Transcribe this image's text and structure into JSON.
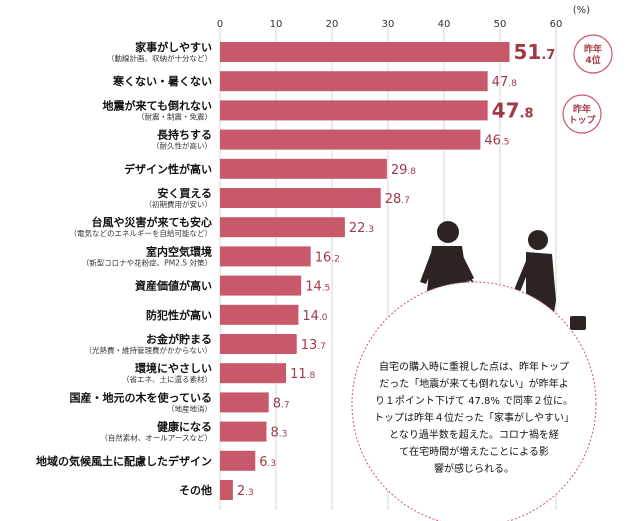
{
  "chart_data": {
    "type": "bar",
    "orientation": "horizontal",
    "unit_label": "(%)",
    "xlim": [
      0,
      60
    ],
    "x_ticks": [
      0,
      10,
      20,
      30,
      40,
      50,
      60
    ],
    "grid": true,
    "bar_color": "#c8596a",
    "value_color": "#a13a46",
    "categories": [
      {
        "label": "家事がしやすい",
        "note": "（動線計画、収納が十分など）",
        "value": 51.7,
        "display_int": "51",
        "display_dec": ".7"
      },
      {
        "label": "寒くない・暑くない",
        "note": "",
        "value": 47.8,
        "display_int": "47",
        "display_dec": ".8"
      },
      {
        "label": "地震が来ても倒れない",
        "note": "（耐震・制震・免震）",
        "value": 47.8,
        "display_int": "47",
        "display_dec": ".8"
      },
      {
        "label": "長持ちする",
        "note": "（耐久性が高い）",
        "value": 46.5,
        "display_int": "46",
        "display_dec": ".5"
      },
      {
        "label": "デザイン性が高い",
        "note": "",
        "value": 29.8,
        "display_int": "29",
        "display_dec": ".8"
      },
      {
        "label": "安く買える",
        "note": "（初期費用が安い）",
        "value": 28.7,
        "display_int": "28",
        "display_dec": ".7"
      },
      {
        "label": "台風や災害が来ても安心",
        "note": "（電気などのエネルギーを自給可能など）",
        "value": 22.3,
        "display_int": "22",
        "display_dec": ".3"
      },
      {
        "label": "室内空気環境",
        "note": "（新型コロナや花粉症、PM2.5 対策）",
        "value": 16.2,
        "display_int": "16",
        "display_dec": ".2"
      },
      {
        "label": "資産価値が高い",
        "note": "",
        "value": 14.5,
        "display_int": "14",
        "display_dec": ".5"
      },
      {
        "label": "防犯性が高い",
        "note": "",
        "value": 14.0,
        "display_int": "14",
        "display_dec": ".0"
      },
      {
        "label": "お金が貯まる",
        "note": "（光熱費・維持管理費がかからない）",
        "value": 13.7,
        "display_int": "13",
        "display_dec": ".7"
      },
      {
        "label": "環境にやさしい",
        "note": "（省エネ、土に還る素材）",
        "value": 11.8,
        "display_int": "11",
        "display_dec": ".8"
      },
      {
        "label": "国産・地元の木を使っている",
        "note": "（地産地消）",
        "value": 8.7,
        "display_int": "8",
        "display_dec": ".7"
      },
      {
        "label": "健康になる",
        "note": "（自然素材、オールアースなど）",
        "value": 8.3,
        "display_int": "8",
        "display_dec": ".3"
      },
      {
        "label": "地域の気候風土に配慮したデザイン",
        "note": "",
        "value": 6.3,
        "display_int": "6",
        "display_dec": ".3"
      },
      {
        "label": "その他",
        "note": "",
        "value": 2.3,
        "display_int": "2",
        "display_dec": ".3"
      }
    ],
    "badges": [
      {
        "row": 0,
        "lines": [
          "昨年",
          "4位"
        ]
      },
      {
        "row": 2,
        "lines": [
          "昨年",
          "トップ"
        ]
      }
    ],
    "callout_lines": [
      "自宅の購入時に重視した点は、昨年トップ",
      "だった「地震が来ても倒れない」が昨年よ",
      "り１ポイント下げて 47.8% で同率２位に。",
      "トップは昨年４位だった「家事がしやすい」",
      "となり過半数を超えた。コロナ禍を経",
      "て在宅時間が増えたことによる影",
      "響が感じられる。"
    ]
  }
}
